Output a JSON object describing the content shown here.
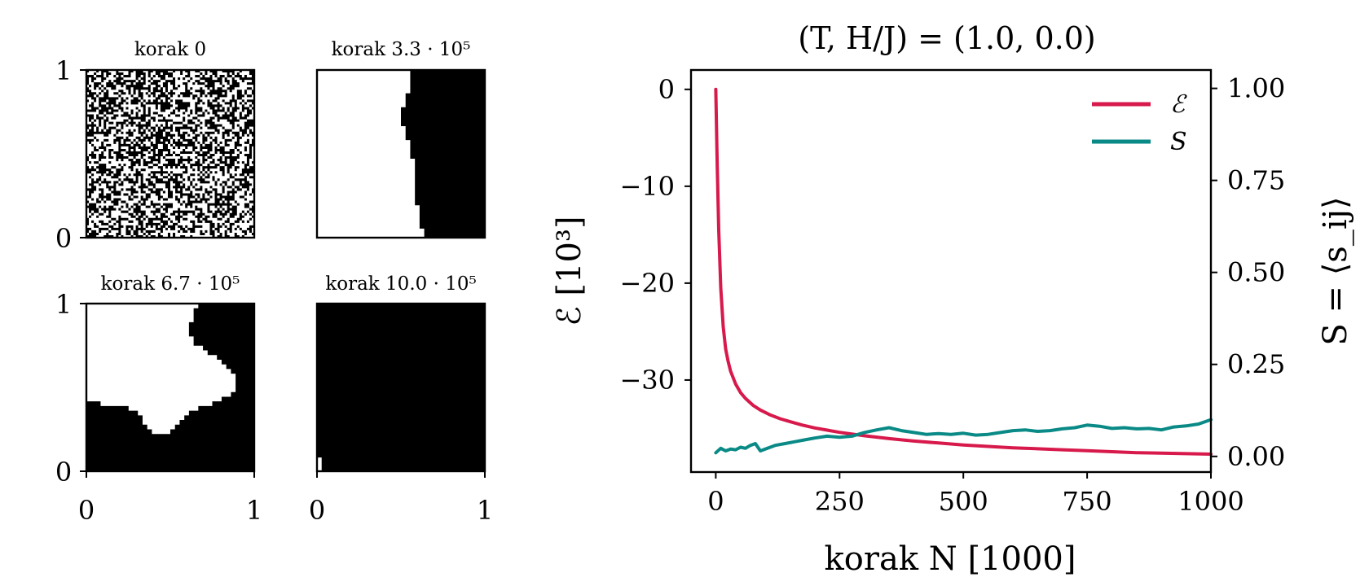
{
  "snapshots": {
    "axis_ticks": [
      "0",
      "1"
    ],
    "panels": [
      {
        "title": "korak 0",
        "grid_n": 0,
        "style": "noise",
        "seed": 7
      },
      {
        "title": "korak 3.3 · 10⁵",
        "grid_n": 36,
        "style": "domains",
        "seed": 11
      },
      {
        "title": "korak 6.7 · 10⁵",
        "grid_n": 36,
        "style": "domains",
        "seed": 23
      },
      {
        "title": "korak 10.0 · 10⁵",
        "grid_n": 36,
        "style": "domains",
        "seed": 37
      }
    ]
  },
  "chart_data": {
    "type": "line",
    "title": "(T, H/J) = (1.0, 0.0)",
    "xlabel": "korak N [1000]",
    "ylabel_left": "ℰ [10³]",
    "ylabel_right": "S = ⟨s_ij⟩",
    "xlim": [
      -50,
      1000
    ],
    "ylim_left": [
      -39.5,
      2
    ],
    "ylim_right": [
      -0.0425,
      1.05
    ],
    "xticks": [
      0,
      250,
      500,
      750,
      1000
    ],
    "xtick_labels": [
      "0",
      "250",
      "500",
      "750",
      "1000"
    ],
    "yticks_left": [
      0,
      -10,
      -20,
      -30
    ],
    "ytick_labels_left": [
      "0",
      "−10",
      "−20",
      "−30"
    ],
    "yticks_right": [
      0.0,
      0.25,
      0.5,
      0.75,
      1.0
    ],
    "ytick_labels_right": [
      "0.00",
      "0.25",
      "0.50",
      "0.75",
      "1.00"
    ],
    "grid": false,
    "legend_position": "top-right",
    "series": [
      {
        "name": "ℰ",
        "axis": "left",
        "color": "#d7194b",
        "x": [
          0,
          3,
          6,
          10,
          15,
          20,
          25,
          30,
          40,
          50,
          60,
          75,
          90,
          110,
          130,
          150,
          175,
          200,
          250,
          300,
          350,
          400,
          450,
          500,
          550,
          600,
          650,
          700,
          750,
          800,
          850,
          900,
          950,
          1000
        ],
        "y": [
          0,
          -8,
          -14.5,
          -20.5,
          -24.5,
          -26.8,
          -28.1,
          -29.1,
          -30.4,
          -31.3,
          -31.9,
          -32.6,
          -33.1,
          -33.6,
          -34.0,
          -34.3,
          -34.65,
          -34.95,
          -35.4,
          -35.75,
          -36.05,
          -36.3,
          -36.5,
          -36.7,
          -36.85,
          -37.0,
          -37.1,
          -37.2,
          -37.3,
          -37.4,
          -37.5,
          -37.55,
          -37.6,
          -37.65
        ]
      },
      {
        "name": "S",
        "axis": "right",
        "color": "#0a8a86",
        "x": [
          0,
          10,
          20,
          30,
          40,
          50,
          60,
          70,
          80,
          90,
          100,
          120,
          140,
          160,
          180,
          200,
          225,
          250,
          275,
          300,
          325,
          350,
          375,
          400,
          425,
          450,
          475,
          500,
          525,
          550,
          575,
          600,
          625,
          650,
          675,
          700,
          725,
          750,
          775,
          800,
          825,
          850,
          875,
          900,
          925,
          950,
          975,
          1000
        ],
        "y": [
          0.01,
          0.022,
          0.015,
          0.02,
          0.018,
          0.025,
          0.022,
          0.03,
          0.035,
          0.015,
          0.02,
          0.03,
          0.035,
          0.04,
          0.045,
          0.05,
          0.055,
          0.052,
          0.055,
          0.065,
          0.072,
          0.078,
          0.07,
          0.065,
          0.06,
          0.062,
          0.06,
          0.063,
          0.058,
          0.06,
          0.065,
          0.07,
          0.072,
          0.068,
          0.07,
          0.075,
          0.078,
          0.085,
          0.082,
          0.076,
          0.078,
          0.075,
          0.076,
          0.072,
          0.08,
          0.083,
          0.088,
          0.1
        ]
      }
    ]
  }
}
